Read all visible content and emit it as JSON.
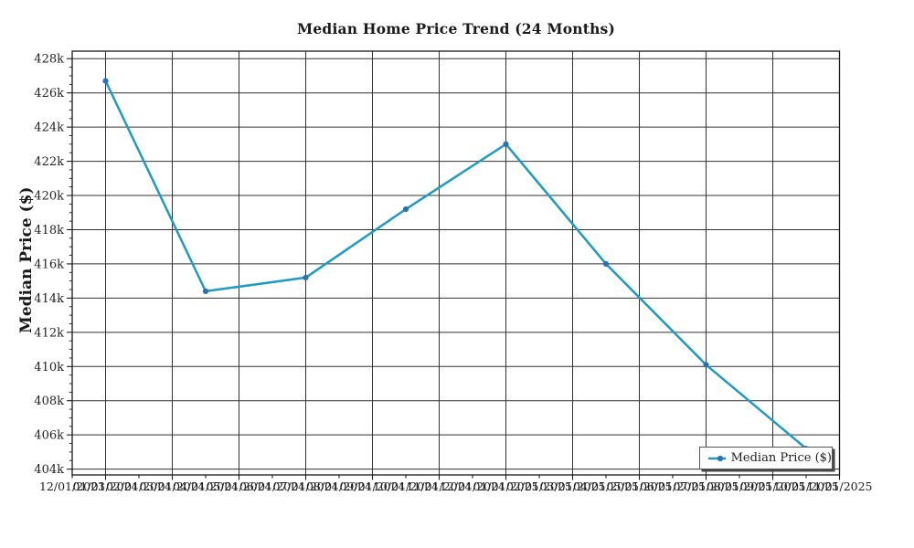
{
  "chart_data": {
    "type": "line",
    "title": "Median Home Price Trend (24 Months)",
    "xlabel": "",
    "ylabel": "Median Price ($)",
    "legend_position": "lower right",
    "grid": true,
    "ylim": [
      403660,
      428440
    ],
    "y_ticks": {
      "values": [
        404000,
        406000,
        408000,
        410000,
        412000,
        414000,
        416000,
        418000,
        420000,
        422000,
        424000,
        426000,
        428000
      ],
      "labels": [
        "404k",
        "406k",
        "408k",
        "410k",
        "412k",
        "414k",
        "416k",
        "418k",
        "420k",
        "422k",
        "424k",
        "426k",
        "428k"
      ]
    },
    "y_minor_step": 500,
    "x_tick_labels": [
      "12/01/2023",
      "01/01/2024",
      "02/01/2024",
      "03/01/2024",
      "04/01/2024",
      "05/01/2024",
      "06/01/2024",
      "07/01/2024",
      "08/01/2024",
      "09/01/2024",
      "10/01/2024",
      "11/01/2024",
      "12/01/2024",
      "01/01/2025",
      "02/01/2025",
      "03/01/2025",
      "04/01/2025",
      "05/01/2025",
      "06/01/2025",
      "07/01/2025",
      "08/01/2025",
      "09/01/2025",
      "10/01/2025",
      "11/01/2025"
    ],
    "x_gridline_indices": [
      1,
      3,
      5,
      7,
      9,
      11,
      13,
      15,
      17,
      19,
      21,
      23
    ],
    "series": [
      {
        "name": "Median Price ($)",
        "line_color": "#1d9cc3",
        "marker_color": "#2d6fb3",
        "points": [
          {
            "date": "01/01/2024",
            "month_index": 1,
            "value": 426700
          },
          {
            "date": "04/01/2024",
            "month_index": 4,
            "value": 414400
          },
          {
            "date": "07/01/2024",
            "month_index": 7,
            "value": 415200
          },
          {
            "date": "10/01/2024",
            "month_index": 10,
            "value": 419200
          },
          {
            "date": "01/01/2025",
            "month_index": 13,
            "value": 423000
          },
          {
            "date": "04/01/2025",
            "month_index": 16,
            "value": 416000
          },
          {
            "date": "07/01/2025",
            "month_index": 19,
            "value": 410100
          },
          {
            "date": "10/01/2025",
            "month_index": 22,
            "value": 405200
          }
        ]
      }
    ],
    "colors": {
      "grid": "#333333",
      "spine": "#1a1a1a",
      "text": "#1f1f1f",
      "background": "#ffffff"
    }
  }
}
